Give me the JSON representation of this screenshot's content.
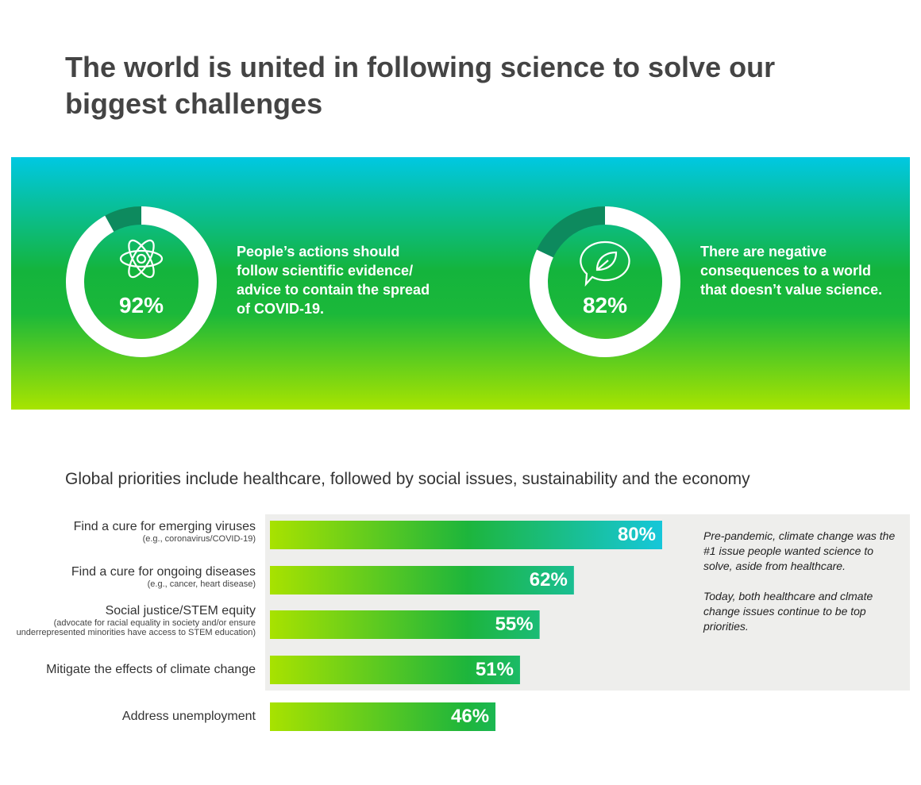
{
  "title": "The world is united in following science to solve our biggest challenges",
  "chart_data": [
    {
      "type": "donut",
      "values": [
        92
      ],
      "value_labels": [
        "92%"
      ],
      "ylim": [
        0,
        100
      ],
      "color": "#ffffff",
      "caption": "People’s actions should follow scientific evidence/ advice to contain the spread of COVID-19."
    },
    {
      "type": "donut",
      "values": [
        82
      ],
      "value_labels": [
        "82%"
      ],
      "ylim": [
        0,
        100
      ],
      "color": "#ffffff",
      "caption": "There are negative consequences to a world that doesn’t value science."
    },
    {
      "type": "bar",
      "orientation": "horizontal",
      "title": "Global priorities include healthcare, followed by social issues, sustainability and the economy",
      "categories": [
        "Find a cure for emerging viruses",
        "Find a cure for ongoing diseases",
        "Social justice/STEM equity",
        "Mitigate the effects of climate change",
        "Address unemployment"
      ],
      "category_notes": [
        "(e.g., coronavirus/COVID-19)",
        "(e.g., cancer, heart disease)",
        "(advocate for racial equality in society and/or ensure underrepresented minorities have access to STEM education)",
        null,
        null
      ],
      "values": [
        80,
        62,
        55,
        51,
        46
      ],
      "value_labels": [
        "80%",
        "62%",
        "55%",
        "51%",
        "46%"
      ],
      "xlim": [
        0,
        100
      ],
      "colors": [
        "#a8e200",
        "#1db53c",
        "#16c7dc"
      ],
      "annotations": [
        "Pre-pandemic, climate change was the #1 issue people wanted science to solve, aside from healthcare.",
        "Today, both healthcare and clmate change issues continue to be top priorities."
      ]
    }
  ]
}
